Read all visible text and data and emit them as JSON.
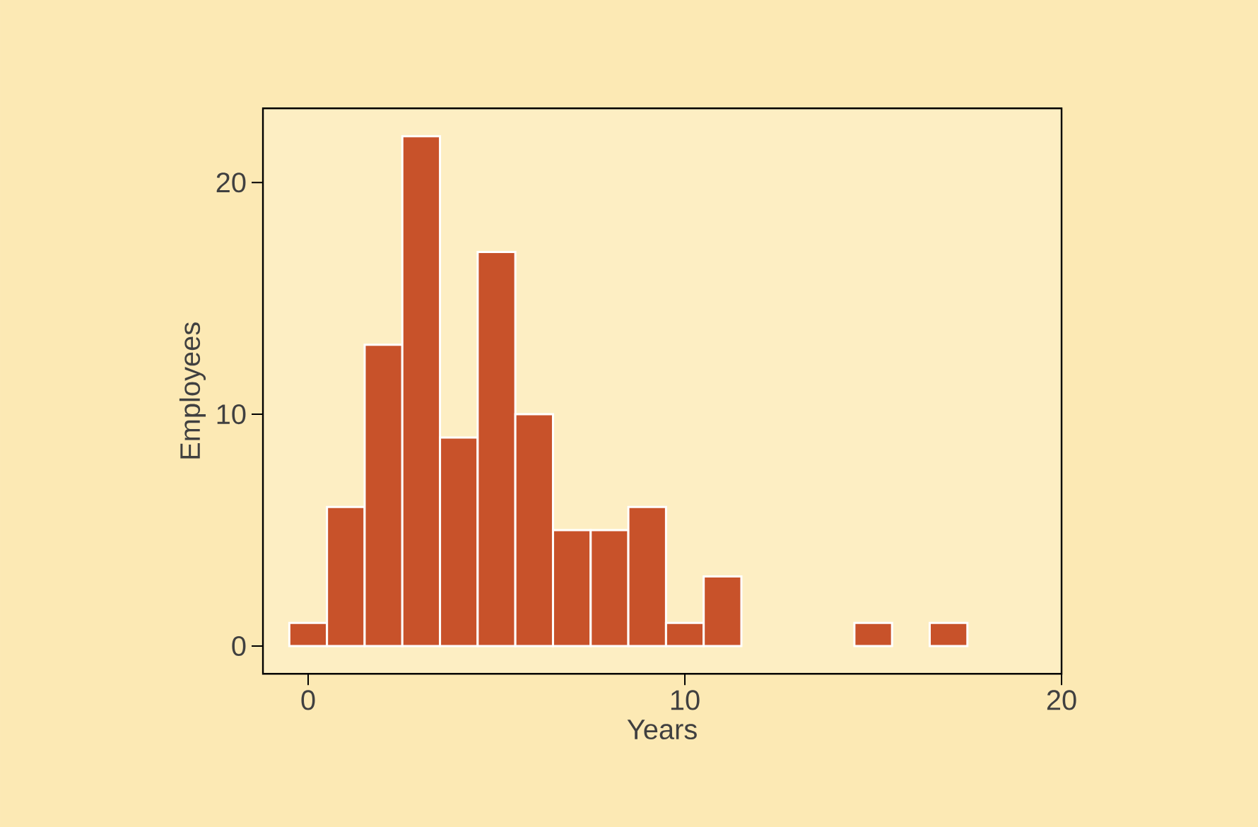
{
  "chart_data": {
    "type": "histogram",
    "xlabel": "Years",
    "ylabel": "Employees",
    "bins": [
      -0.5,
      0.5,
      1.5,
      2.5,
      3.5,
      4.5,
      5.5,
      6.5,
      7.5,
      8.5,
      9.5,
      10.5,
      11.5,
      12.5,
      13.5,
      14.5,
      15.5,
      16.5,
      17.5
    ],
    "values": [
      1,
      6,
      13,
      22,
      9,
      17,
      10,
      5,
      5,
      6,
      1,
      3,
      0,
      0,
      0,
      1,
      0,
      1
    ],
    "color": "#c8522a",
    "xlim": [
      -1.2,
      20
    ],
    "ylim": [
      -1.2,
      23.2
    ],
    "xticks": [
      0,
      10,
      20
    ],
    "yticks": [
      0,
      10,
      20
    ],
    "grid": false
  }
}
